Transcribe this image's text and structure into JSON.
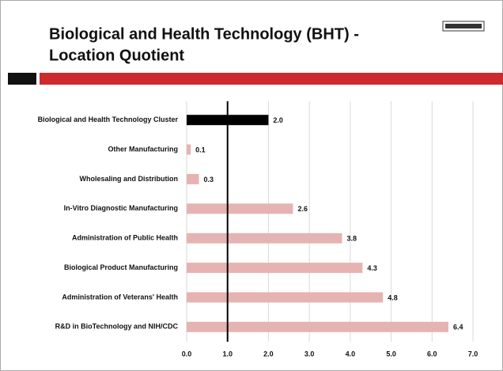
{
  "chart_data": {
    "type": "barh",
    "title": [
      "Biological and Health Technology (BHT) -",
      "Location Quotient"
    ],
    "categories": [
      "Biological and Health Technology Cluster",
      "Other Manufacturing",
      "Wholesaling and Distribution",
      "In-Vitro Diagnostic Manufacturing",
      "Administration of Public Health",
      "Biological Product Manufacturing",
      "Administration of Veterans' Health",
      "R&D in BioTechnology and NIH/CDC"
    ],
    "values": [
      2.0,
      0.1,
      0.3,
      2.6,
      3.8,
      4.3,
      4.8,
      6.4
    ],
    "value_labels": [
      "2.0",
      "0.1",
      "0.3",
      "2.6",
      "3.8",
      "4.3",
      "4.8",
      "6.4"
    ],
    "colors": [
      "#000000",
      "#e6b3b3",
      "#e6b3b3",
      "#e6b3b3",
      "#e6b3b3",
      "#e6b3b3",
      "#e6b3b3",
      "#e6b3b3"
    ],
    "xlim": [
      0,
      7
    ],
    "xticks": [
      {
        "value": 0,
        "label": "0.0"
      },
      {
        "value": 1,
        "label": "1.0"
      },
      {
        "value": 2,
        "label": "2.0"
      },
      {
        "value": 3,
        "label": "3.0"
      },
      {
        "value": 4,
        "label": "4.0"
      },
      {
        "value": 5,
        "label": "5.0"
      },
      {
        "value": 6,
        "label": "6.0"
      },
      {
        "value": 7,
        "label": "7.0"
      }
    ],
    "grid": true,
    "reference_x": 1
  }
}
